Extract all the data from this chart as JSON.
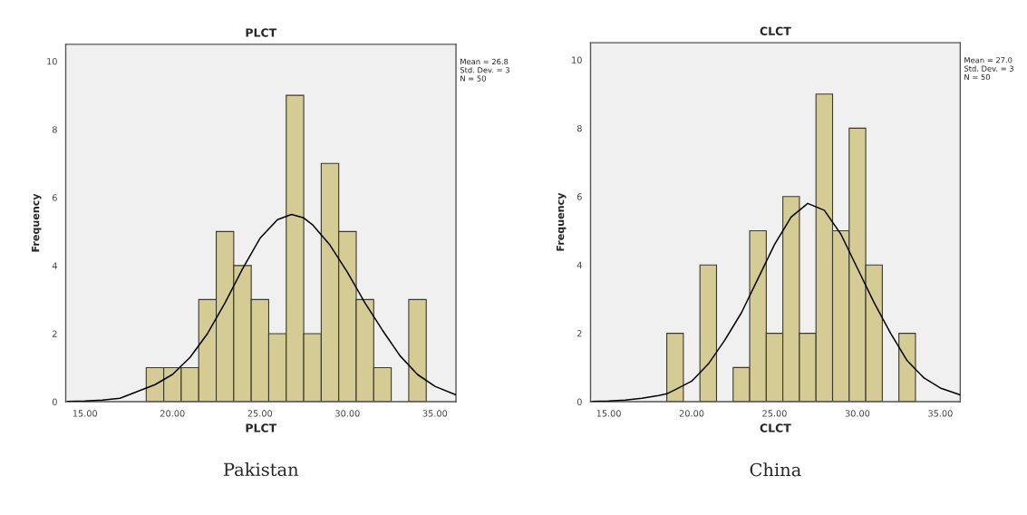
{
  "chart_data": [
    {
      "type": "histogram",
      "title": "PLCT",
      "xlabel": "PLCT",
      "ylabel": "Frequency",
      "bins": [
        18.5,
        19.5,
        20.5,
        21.5,
        22.5,
        23.5,
        24.5,
        25.5,
        26.5,
        27.5,
        28.5,
        29.5,
        30.5,
        31.5,
        32.5,
        33.5,
        34.5
      ],
      "values": [
        1,
        1,
        1,
        3,
        5,
        4,
        3,
        2,
        9,
        2,
        7,
        5,
        3,
        1,
        0,
        3
      ],
      "color": "#d4cc94",
      "series": [
        {
          "type": "line",
          "color": "#000000",
          "x": [
            14,
            15,
            16,
            17,
            18,
            18.5,
            19,
            20,
            21,
            22,
            23,
            24,
            25,
            26,
            26.8,
            27.5,
            28,
            29,
            30,
            31,
            32,
            33,
            34,
            35,
            36.2
          ],
          "values": [
            0.01,
            0.02,
            0.05,
            0.1,
            0.3,
            0.4,
            0.5,
            0.8,
            1.3,
            2.0,
            2.9,
            3.9,
            4.8,
            5.35,
            5.5,
            5.4,
            5.2,
            4.6,
            3.8,
            2.9,
            2.1,
            1.35,
            0.8,
            0.45,
            0.2
          ]
        }
      ],
      "xlim": [
        13.9,
        36.2
      ],
      "ylim": [
        0,
        10.5
      ],
      "xticks": [
        {
          "value": 15,
          "label": "15.00"
        },
        {
          "value": 20,
          "label": "20.00"
        },
        {
          "value": 25,
          "label": "25.00"
        },
        {
          "value": 30,
          "label": "30.00"
        },
        {
          "value": 35,
          "label": "35.00"
        }
      ],
      "yticks": [
        0,
        2,
        4,
        6,
        8,
        10
      ],
      "annotations": [
        "Mean = 26.8\nStd. Dev. = 3\nN = 50",
        "Pakistan"
      ],
      "grid": false
    },
    {
      "type": "histogram",
      "title": "CLCT",
      "xlabel": "CLCT",
      "ylabel": "Frequency",
      "bins": [
        18.5,
        19.5,
        20.5,
        21.5,
        22.5,
        23.5,
        24.5,
        25.5,
        26.5,
        27.5,
        28.5,
        29.5,
        30.5,
        31.5,
        32.5,
        33.5
      ],
      "values": [
        2,
        0,
        4,
        0,
        1,
        5,
        2,
        6,
        2,
        9,
        5,
        8,
        4,
        0,
        2
      ],
      "color": "#d4cc94",
      "series": [
        {
          "type": "line",
          "color": "#000000",
          "x": [
            14,
            15,
            16,
            17,
            18,
            18.5,
            19,
            20,
            21,
            22,
            23,
            24,
            25,
            26,
            27,
            28,
            29,
            30,
            31,
            32,
            33,
            34,
            35,
            36.2
          ],
          "values": [
            0.01,
            0.02,
            0.05,
            0.1,
            0.18,
            0.23,
            0.35,
            0.6,
            1.1,
            1.8,
            2.6,
            3.6,
            4.6,
            5.4,
            5.8,
            5.6,
            4.9,
            3.9,
            2.9,
            2.0,
            1.2,
            0.7,
            0.4,
            0.2
          ]
        }
      ],
      "xlim": [
        13.9,
        36.2
      ],
      "ylim": [
        0,
        10.5
      ],
      "xticks": [
        {
          "value": 15,
          "label": "15.00"
        },
        {
          "value": 20,
          "label": "20.00"
        },
        {
          "value": 25,
          "label": "25.00"
        },
        {
          "value": 30,
          "label": "30.00"
        },
        {
          "value": 35,
          "label": "35.00"
        }
      ],
      "yticks": [
        0,
        2,
        4,
        6,
        8,
        10
      ],
      "annotations": [
        "Mean = 27.0\nStd. Dev. = 3\nN = 50",
        "China"
      ],
      "grid": false
    }
  ]
}
